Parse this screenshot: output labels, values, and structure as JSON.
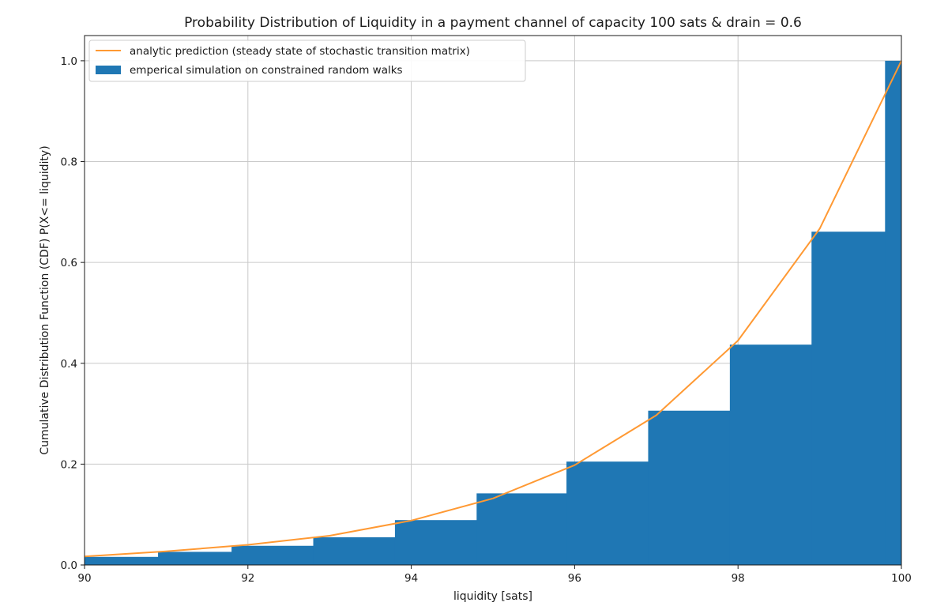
{
  "chart_data": {
    "type": "bar",
    "title": "Probability Distribution of Liquidity in a payment channel of capacity 100 sats & drain = 0.6",
    "xlabel": "liquidity [sats]",
    "ylabel": "Cumulative Distribution Function (CDF) P(X<= liquidity)",
    "xlim": [
      90,
      100
    ],
    "ylim": [
      0,
      1.05
    ],
    "x_ticks": [
      90,
      92,
      94,
      96,
      98,
      100
    ],
    "y_ticks": [
      0.0,
      0.2,
      0.4,
      0.6,
      0.8,
      1.0
    ],
    "x_tick_labels": [
      "90",
      "92",
      "94",
      "96",
      "98",
      "100"
    ],
    "y_tick_labels": [
      "0.0",
      "0.2",
      "0.4",
      "0.6",
      "0.8",
      "1.0"
    ],
    "grid": true,
    "legend_position": "top-left",
    "series": [
      {
        "name": "analytic prediction (steady state of stochastic transition matrix)",
        "type": "line",
        "color": "#ff9933",
        "x": [
          90,
          91,
          92,
          93,
          94,
          95,
          96,
          97,
          98,
          99,
          100
        ],
        "y": [
          0.017,
          0.027,
          0.04,
          0.058,
          0.088,
          0.132,
          0.198,
          0.297,
          0.445,
          0.667,
          1.0
        ]
      },
      {
        "name": "emperical simulation on constrained random walks",
        "type": "bar",
        "color": "#1f77b4",
        "bins": [
          {
            "x0": 90.0,
            "x1": 90.9,
            "value": 0.016
          },
          {
            "x0": 90.9,
            "x1": 91.8,
            "value": 0.026
          },
          {
            "x0": 91.8,
            "x1": 92.8,
            "value": 0.038
          },
          {
            "x0": 92.8,
            "x1": 93.8,
            "value": 0.055
          },
          {
            "x0": 93.8,
            "x1": 94.8,
            "value": 0.089
          },
          {
            "x0": 94.8,
            "x1": 95.9,
            "value": 0.142
          },
          {
            "x0": 95.9,
            "x1": 96.9,
            "value": 0.205
          },
          {
            "x0": 96.9,
            "x1": 97.9,
            "value": 0.306
          },
          {
            "x0": 97.9,
            "x1": 98.9,
            "value": 0.437
          },
          {
            "x0": 98.9,
            "x1": 99.8,
            "value": 0.661
          },
          {
            "x0": 99.8,
            "x1": 100.0,
            "value": 1.0
          }
        ]
      }
    ]
  }
}
